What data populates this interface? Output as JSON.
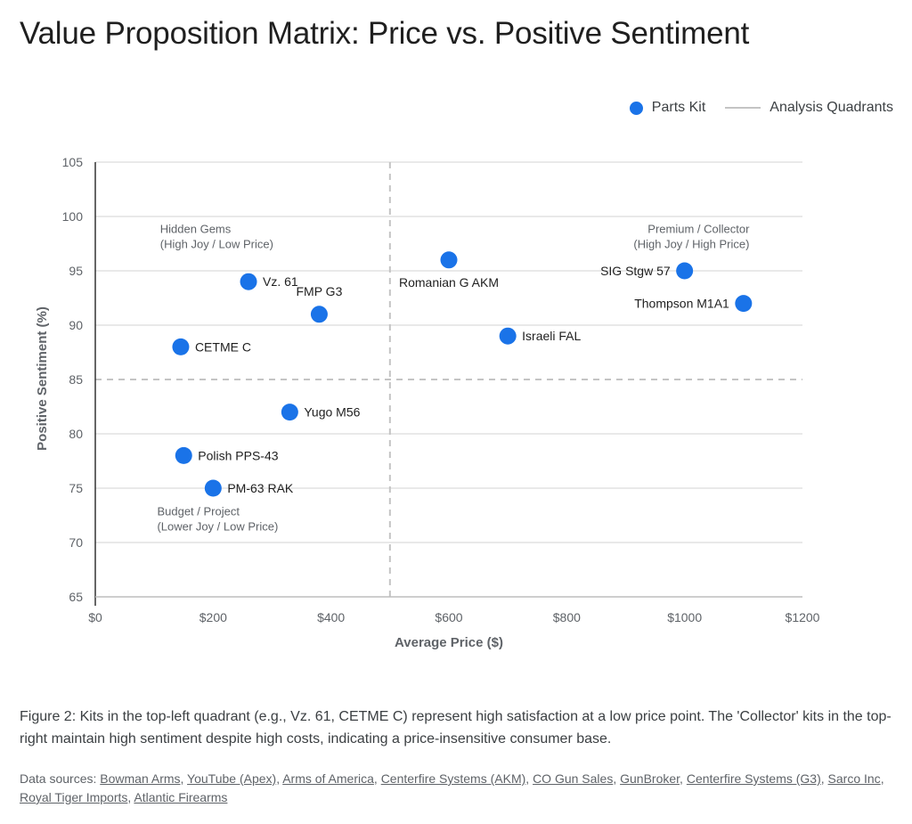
{
  "title": "Value Proposition Matrix: Price vs. Positive Sentiment",
  "legend": {
    "items": [
      {
        "label": "Parts Kit",
        "icon": "circle-marker-icon",
        "color": "#1a73e8"
      },
      {
        "label": "Analysis Quadrants",
        "icon": "line-marker-icon",
        "color": "#c4c4c4"
      }
    ]
  },
  "chart_data": {
    "type": "scatter",
    "title": "Value Proposition Matrix: Price vs. Positive Sentiment",
    "xlabel": "Average Price ($)",
    "ylabel": "Positive Sentiment (%)",
    "xlim": [
      0,
      1200
    ],
    "ylim": [
      65,
      105
    ],
    "x_ticks": [
      0,
      200,
      400,
      600,
      800,
      1000,
      1200
    ],
    "x_tick_labels": [
      "$0",
      "$200",
      "$400",
      "$600",
      "$800",
      "$1000",
      "$1200"
    ],
    "y_ticks": [
      65,
      70,
      75,
      80,
      85,
      90,
      95,
      100,
      105
    ],
    "y_tick_labels": [
      "65",
      "70",
      "75",
      "80",
      "85",
      "90",
      "95",
      "100",
      "105"
    ],
    "grid": true,
    "legend_position": "top-right",
    "series": [
      {
        "name": "Parts Kit",
        "color": "#1a73e8",
        "points": [
          {
            "label": "Vz. 61",
            "x": 260,
            "y": 94,
            "label_side": "right"
          },
          {
            "label": "FMP G3",
            "x": 380,
            "y": 91,
            "label_side": "above"
          },
          {
            "label": "CETME C",
            "x": 145,
            "y": 88,
            "label_side": "right"
          },
          {
            "label": "Romanian G AKM",
            "x": 600,
            "y": 96,
            "label_side": "below"
          },
          {
            "label": "Israeli FAL",
            "x": 700,
            "y": 89,
            "label_side": "right"
          },
          {
            "label": "SIG Stgw 57",
            "x": 1000,
            "y": 95,
            "label_side": "left"
          },
          {
            "label": "Thompson M1A1",
            "x": 1100,
            "y": 92,
            "label_side": "left"
          },
          {
            "label": "Yugo M56",
            "x": 330,
            "y": 82,
            "label_side": "right"
          },
          {
            "label": "Polish PPS-43",
            "x": 150,
            "y": 78,
            "label_side": "right"
          },
          {
            "label": "PM-63 RAK",
            "x": 200,
            "y": 75,
            "label_side": "right"
          }
        ]
      }
    ],
    "reference_lines": {
      "name": "Analysis Quadrants",
      "color": "#c4c4c4",
      "style": "dashed",
      "x": 500,
      "y": 85
    },
    "annotations": [
      {
        "lines": [
          "Hidden Gems",
          "(High Joy / Low Price)"
        ],
        "x": 110,
        "y": 98.5,
        "anchor": "start"
      },
      {
        "lines": [
          "Premium / Collector",
          "(High Joy / High Price)"
        ],
        "x": 1110,
        "y": 98.5,
        "anchor": "end"
      },
      {
        "lines": [
          "Budget / Project",
          "(Lower Joy / Low Price)"
        ],
        "x": 105,
        "y": 72.5,
        "anchor": "start"
      }
    ]
  },
  "caption": "Figure 2: Kits in the top-left quadrant (e.g., Vz. 61, CETME C) represent high satisfaction at a low price point. The 'Collector' kits in the top-right maintain high sentiment despite high costs, indicating a price-insensitive consumer base.",
  "sources": {
    "prefix": "Data sources: ",
    "links": [
      "Bowman Arms",
      "YouTube (Apex)",
      "Arms of America",
      "Centerfire Systems (AKM)",
      "CO Gun Sales",
      "GunBroker",
      "Centerfire Systems (G3)",
      "Sarco Inc",
      "Royal Tiger Imports",
      "Atlantic Firearms"
    ]
  }
}
